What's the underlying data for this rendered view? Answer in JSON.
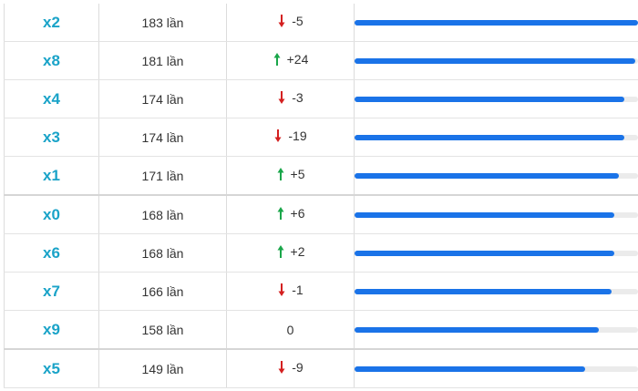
{
  "colors": {
    "up": "#1aa64a",
    "down": "#d42020",
    "accent": "#1aa3c8",
    "bar": "#1a73e8"
  },
  "rows": [
    {
      "number": "x2",
      "count": "183 lần",
      "direction": "down",
      "arrow_icon": "red-down-arrow-icon",
      "change": "-5",
      "level": 1.0
    },
    {
      "number": "x8",
      "count": "181 lần",
      "direction": "up",
      "arrow_icon": "green-up-arrow-icon",
      "change": "+24",
      "level": 0.989
    },
    {
      "number": "x4",
      "count": "174 lần",
      "direction": "down",
      "arrow_icon": "red-down-arrow-icon",
      "change": "-3",
      "level": 0.951
    },
    {
      "number": "x3",
      "count": "174 lần",
      "direction": "down",
      "arrow_icon": "red-down-arrow-icon",
      "change": "-19",
      "level": 0.951
    },
    {
      "number": "x1",
      "count": "171 lần",
      "direction": "up",
      "arrow_icon": "green-up-arrow-icon",
      "change": "+5",
      "level": 0.934
    },
    {
      "number": "x0",
      "count": "168 lần",
      "direction": "up",
      "arrow_icon": "green-up-arrow-icon",
      "change": "+6",
      "level": 0.918
    },
    {
      "number": "x6",
      "count": "168 lần",
      "direction": "up",
      "arrow_icon": "green-up-arrow-icon",
      "change": "+2",
      "level": 0.918
    },
    {
      "number": "x7",
      "count": "166 lần",
      "direction": "down",
      "arrow_icon": "red-down-arrow-icon",
      "change": "-1",
      "level": 0.907
    },
    {
      "number": "x9",
      "count": "158 lần",
      "direction": "none",
      "arrow_icon": "",
      "change": "0",
      "level": 0.863
    },
    {
      "number": "x5",
      "count": "149 lần",
      "direction": "down",
      "arrow_icon": "red-down-arrow-icon",
      "change": "-9",
      "level": 0.814
    }
  ]
}
